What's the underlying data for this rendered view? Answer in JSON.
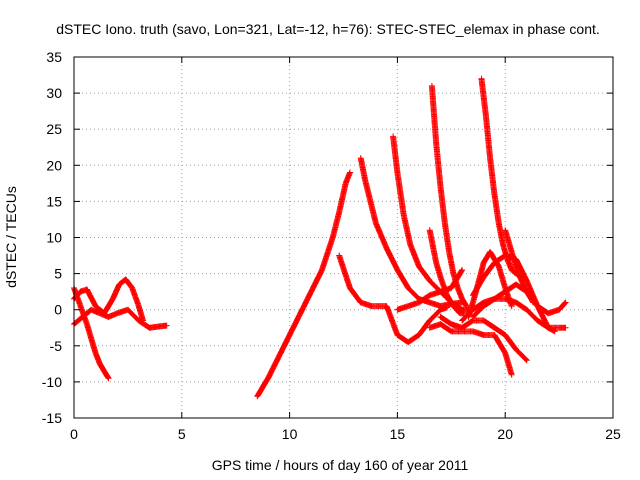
{
  "chart_data": {
    "type": "scatter",
    "title": "dSTEC Iono. truth (savo, Lon=321, Lat=-12, h=76): STEC-STEC_elemax in phase cont.",
    "xlabel": "GPS time / hours of day 160 of year 2011",
    "ylabel": "dSTEC  / TECUs",
    "xlim": [
      0,
      25
    ],
    "ylim": [
      -15,
      35
    ],
    "xticks": [
      0,
      5,
      10,
      15,
      20,
      25
    ],
    "yticks": [
      -15,
      -10,
      -5,
      0,
      5,
      10,
      15,
      20,
      25,
      30,
      35
    ],
    "grid": true,
    "legend": "none",
    "marker": "plus",
    "color": "#ff0000",
    "series": [
      {
        "x": [
          0.0,
          0.3,
          0.6,
          0.8,
          1.0,
          1.2,
          1.4,
          1.6
        ],
        "y": [
          3.0,
          0.5,
          -2.0,
          -4.0,
          -6.0,
          -7.5,
          -8.5,
          -9.5
        ]
      },
      {
        "x": [
          0.0,
          0.4,
          0.8,
          1.2,
          1.6,
          2.0,
          2.5,
          3.0,
          3.5,
          4.0,
          4.3
        ],
        "y": [
          -2.0,
          -1.0,
          0.0,
          -0.5,
          -1.0,
          -0.5,
          0.0,
          -1.5,
          -2.5,
          -2.3,
          -2.2
        ]
      },
      {
        "x": [
          0.0,
          0.3,
          0.6,
          1.0,
          1.4,
          1.8,
          2.1,
          2.4,
          2.7,
          3.0,
          3.2
        ],
        "y": [
          1.5,
          2.5,
          2.8,
          0.5,
          -0.5,
          1.5,
          3.5,
          4.2,
          3.0,
          0.5,
          -1.5
        ]
      },
      {
        "x": [
          8.5,
          9.0,
          9.5,
          10.0,
          10.5,
          11.0,
          11.5,
          12.0,
          12.3,
          12.6,
          12.8
        ],
        "y": [
          -12.0,
          -9.5,
          -6.5,
          -3.5,
          -0.5,
          2.5,
          5.5,
          10.0,
          13.5,
          17.5,
          19.0
        ]
      },
      {
        "x": [
          12.3,
          12.8,
          13.3,
          13.8,
          14.5,
          15.0,
          15.5,
          16.0,
          16.5,
          17.0,
          17.3
        ],
        "y": [
          7.5,
          3.0,
          1.0,
          0.5,
          0.5,
          -3.5,
          -4.5,
          -3.5,
          -1.5,
          0.0,
          0.3
        ]
      },
      {
        "x": [
          13.3,
          13.5,
          14.0,
          14.5,
          15.0,
          15.5,
          16.0,
          16.5,
          17.0,
          17.5,
          18.0
        ],
        "y": [
          21.0,
          18.0,
          12.0,
          8.5,
          5.5,
          3.0,
          1.5,
          1.0,
          0.5,
          0.8,
          1.0
        ]
      },
      {
        "x": [
          14.8,
          15.0,
          15.3,
          15.6,
          16.0,
          16.5,
          17.0,
          17.5,
          18.0,
          18.3
        ],
        "y": [
          24.0,
          19.0,
          13.0,
          9.0,
          6.0,
          4.0,
          2.5,
          1.0,
          0.0,
          0.0
        ]
      },
      {
        "x": [
          16.6,
          16.8,
          17.0,
          17.2,
          17.4,
          17.6,
          17.8,
          18.0,
          18.2
        ],
        "y": [
          31.0,
          23.0,
          17.0,
          12.0,
          8.0,
          5.0,
          3.0,
          1.5,
          0.5
        ]
      },
      {
        "x": [
          18.9,
          19.1,
          19.3,
          19.5,
          19.7,
          19.9,
          20.1,
          20.3,
          20.5
        ],
        "y": [
          32.0,
          27.0,
          21.0,
          16.0,
          12.0,
          9.0,
          7.0,
          5.5,
          5.0
        ]
      },
      {
        "x": [
          15.0,
          15.5,
          16.0,
          16.5,
          17.0,
          17.5,
          18.0
        ],
        "y": [
          0.0,
          0.5,
          1.0,
          2.0,
          2.5,
          3.0,
          5.5
        ]
      },
      {
        "x": [
          16.5,
          16.8,
          17.0,
          17.3,
          17.6,
          17.9,
          18.1
        ],
        "y": [
          11.0,
          6.5,
          4.5,
          2.0,
          0.5,
          -0.5,
          -0.5
        ]
      },
      {
        "x": [
          16.5,
          17.0,
          17.5,
          18.0,
          18.5,
          19.0,
          19.5,
          20.0,
          20.3
        ],
        "y": [
          -2.5,
          -2.0,
          -3.0,
          -3.0,
          -3.0,
          -3.5,
          -3.5,
          -6.0,
          -9.0
        ]
      },
      {
        "x": [
          17.0,
          17.5,
          18.0,
          18.5,
          19.0,
          19.5,
          20.0,
          20.5,
          21.0
        ],
        "y": [
          -1.0,
          -2.0,
          -2.5,
          -1.5,
          -1.5,
          -2.5,
          -3.5,
          -5.5,
          -7.0
        ]
      },
      {
        "x": [
          18.3,
          18.6,
          19.0,
          19.3,
          19.7,
          20.0,
          20.3
        ],
        "y": [
          -1.0,
          2.0,
          6.5,
          8.0,
          6.0,
          3.0,
          0.5
        ]
      },
      {
        "x": [
          18.0,
          18.5,
          19.0,
          19.5,
          20.0,
          20.5,
          21.0,
          21.5,
          22.0,
          22.5,
          22.8
        ],
        "y": [
          -1.5,
          0.0,
          1.0,
          1.5,
          1.5,
          1.0,
          0.0,
          -1.5,
          -2.5,
          -2.5,
          -2.5
        ]
      },
      {
        "x": [
          20.0,
          20.3,
          20.6,
          21.0,
          21.5,
          22.0,
          22.5,
          22.8
        ],
        "y": [
          11.0,
          8.0,
          5.0,
          2.5,
          0.5,
          -0.5,
          0.0,
          1.0
        ]
      },
      {
        "x": [
          18.5,
          19.0,
          19.5,
          20.0,
          20.5,
          21.0,
          21.5,
          22.0,
          22.3
        ],
        "y": [
          2.0,
          4.5,
          6.5,
          7.5,
          7.0,
          4.0,
          0.5,
          -2.5,
          -3.0
        ]
      },
      {
        "x": [
          18.5,
          19.0,
          19.5,
          20.0,
          20.5,
          21.0,
          21.3
        ],
        "y": [
          -1.0,
          0.5,
          1.5,
          2.5,
          3.5,
          2.5,
          1.0
        ]
      }
    ]
  }
}
